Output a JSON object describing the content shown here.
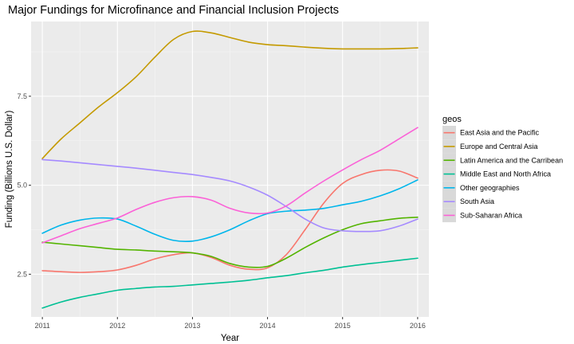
{
  "chart_data": {
    "type": "line",
    "title": "Major Fundings for Microfinance and Financial Inclusion Projects",
    "xlabel": "Year",
    "ylabel": "Funding (Billions U.S. Dollar)",
    "xlim": [
      2010.85,
      2016.15
    ],
    "ylim": [
      1.3,
      9.6
    ],
    "x_ticks": [
      2011,
      2012,
      2013,
      2014,
      2015,
      2016
    ],
    "x_tick_labels": [
      "2011",
      "2012",
      "2013",
      "2014",
      "2015",
      "2016"
    ],
    "y_ticks": [
      2.5,
      5.0,
      7.5
    ],
    "y_tick_labels": [
      "2.5",
      "5.0",
      "7.5"
    ],
    "grid": true,
    "legend": {
      "title": "geos",
      "position": "right"
    },
    "x": [
      2011,
      2011.25,
      2011.5,
      2011.75,
      2012,
      2012.25,
      2012.5,
      2012.75,
      2013,
      2013.25,
      2013.5,
      2013.75,
      2014,
      2014.25,
      2014.5,
      2014.75,
      2015,
      2015.25,
      2015.5,
      2015.75,
      2016
    ],
    "series": [
      {
        "name": "East Asia and the Pacific",
        "color": "#F8766D",
        "values": [
          2.6,
          2.57,
          2.55,
          2.57,
          2.62,
          2.75,
          2.93,
          3.05,
          3.1,
          2.97,
          2.75,
          2.64,
          2.68,
          3.05,
          3.75,
          4.5,
          5.05,
          5.3,
          5.42,
          5.4,
          5.2
        ]
      },
      {
        "name": "Europe and Central Asia",
        "color": "#C49A00",
        "values": [
          5.75,
          6.3,
          6.75,
          7.2,
          7.6,
          8.05,
          8.6,
          9.1,
          9.32,
          9.28,
          9.15,
          9.02,
          8.95,
          8.92,
          8.88,
          8.85,
          8.83,
          8.83,
          8.83,
          8.84,
          8.86
        ]
      },
      {
        "name": "Latin America and the Carribean",
        "color": "#53B400",
        "values": [
          3.4,
          3.35,
          3.3,
          3.25,
          3.2,
          3.18,
          3.15,
          3.13,
          3.1,
          3.0,
          2.8,
          2.7,
          2.72,
          2.95,
          3.25,
          3.52,
          3.75,
          3.92,
          4.0,
          4.07,
          4.1
        ]
      },
      {
        "name": "Middle East and North Africa",
        "color": "#00C094",
        "values": [
          1.55,
          1.72,
          1.85,
          1.95,
          2.05,
          2.1,
          2.14,
          2.16,
          2.2,
          2.24,
          2.28,
          2.33,
          2.4,
          2.46,
          2.54,
          2.61,
          2.7,
          2.77,
          2.83,
          2.89,
          2.95
        ]
      },
      {
        "name": "Other geographies",
        "color": "#00B6EB",
        "values": [
          3.65,
          3.88,
          4.02,
          4.08,
          4.05,
          3.85,
          3.62,
          3.45,
          3.43,
          3.55,
          3.75,
          4.0,
          4.2,
          4.27,
          4.3,
          4.35,
          4.45,
          4.55,
          4.7,
          4.9,
          5.15
        ]
      },
      {
        "name": "South Asia",
        "color": "#A58AFF",
        "values": [
          5.72,
          5.68,
          5.63,
          5.58,
          5.53,
          5.48,
          5.42,
          5.36,
          5.3,
          5.22,
          5.12,
          4.95,
          4.72,
          4.4,
          4.05,
          3.8,
          3.72,
          3.7,
          3.72,
          3.85,
          4.05
        ]
      },
      {
        "name": "Sub-Saharan Africa",
        "color": "#FB61D7",
        "values": [
          3.38,
          3.58,
          3.78,
          3.93,
          4.08,
          4.32,
          4.52,
          4.65,
          4.68,
          4.58,
          4.35,
          4.22,
          4.22,
          4.42,
          4.78,
          5.12,
          5.43,
          5.72,
          5.98,
          6.3,
          6.62
        ]
      }
    ]
  }
}
